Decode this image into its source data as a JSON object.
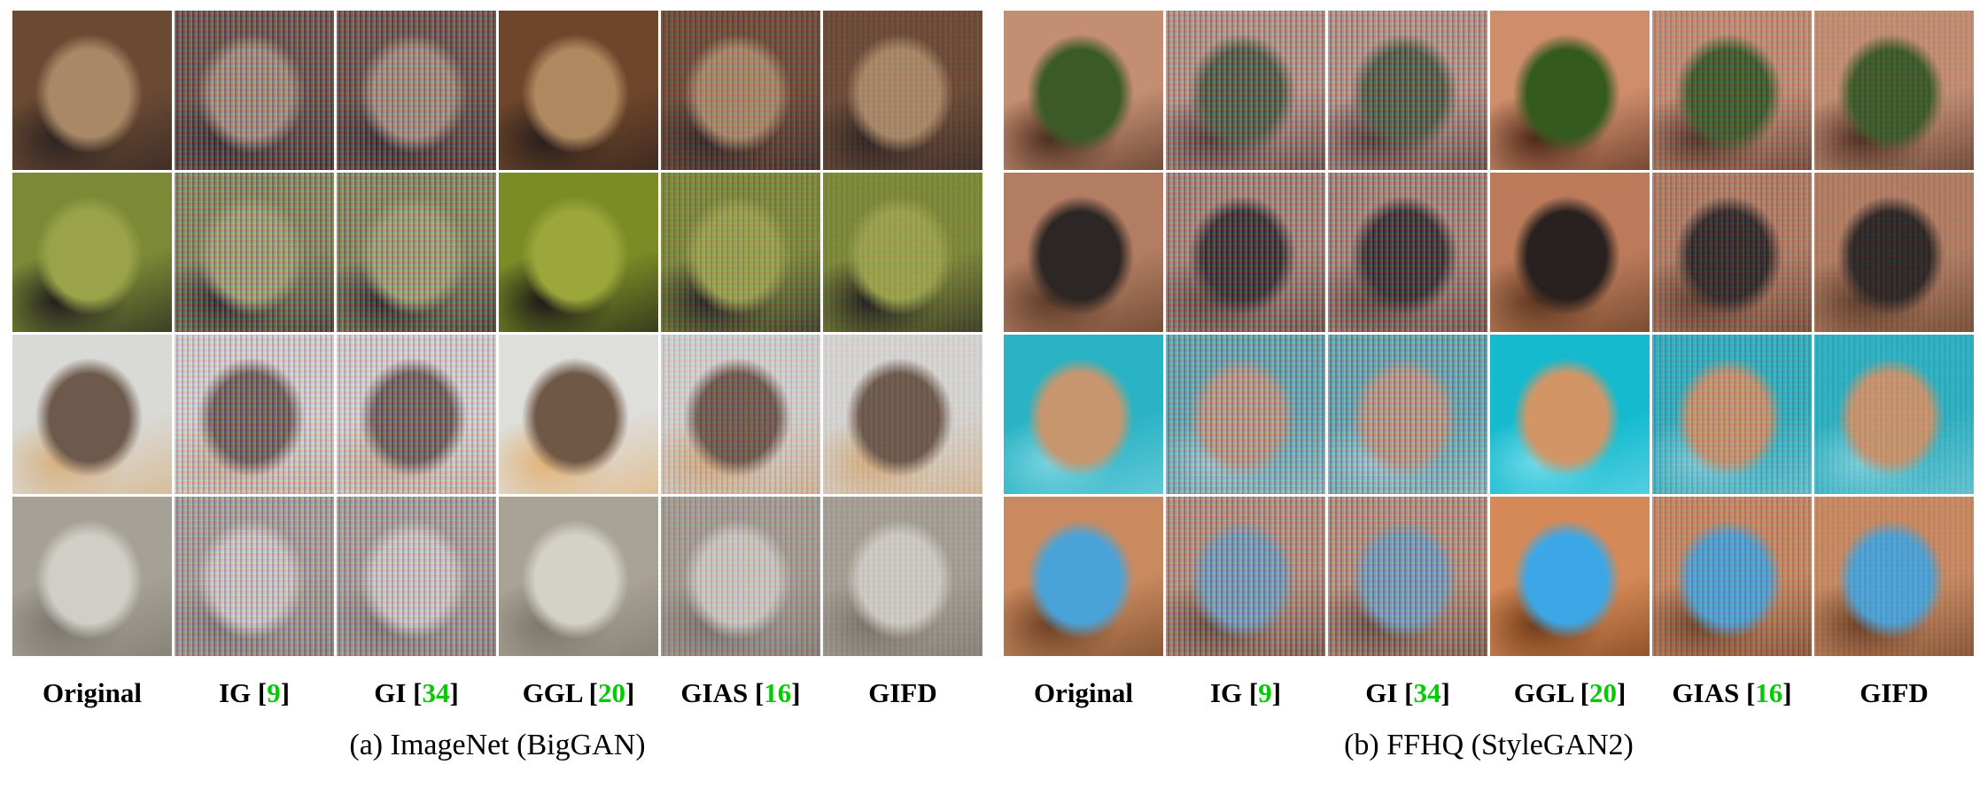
{
  "panels": [
    {
      "caption": "(a) ImageNet (BigGAN)",
      "columns": [
        {
          "name": "Original",
          "cite": ""
        },
        {
          "name": "IG",
          "cite": "9"
        },
        {
          "name": "GI",
          "cite": "34"
        },
        {
          "name": "GGL",
          "cite": "20"
        },
        {
          "name": "GIAS",
          "cite": "16"
        },
        {
          "name": "GIFD",
          "cite": ""
        }
      ]
    },
    {
      "caption": "(b) FFHQ (StyleGAN2)",
      "columns": [
        {
          "name": "Original",
          "cite": ""
        },
        {
          "name": "IG",
          "cite": "9"
        },
        {
          "name": "GI",
          "cite": "34"
        },
        {
          "name": "GGL",
          "cite": "20"
        },
        {
          "name": "GIAS",
          "cite": "16"
        },
        {
          "name": "GIFD",
          "cite": ""
        }
      ]
    }
  ],
  "colors": {
    "citation": "#00cc00",
    "text": "#000000",
    "background": "#ffffff"
  }
}
